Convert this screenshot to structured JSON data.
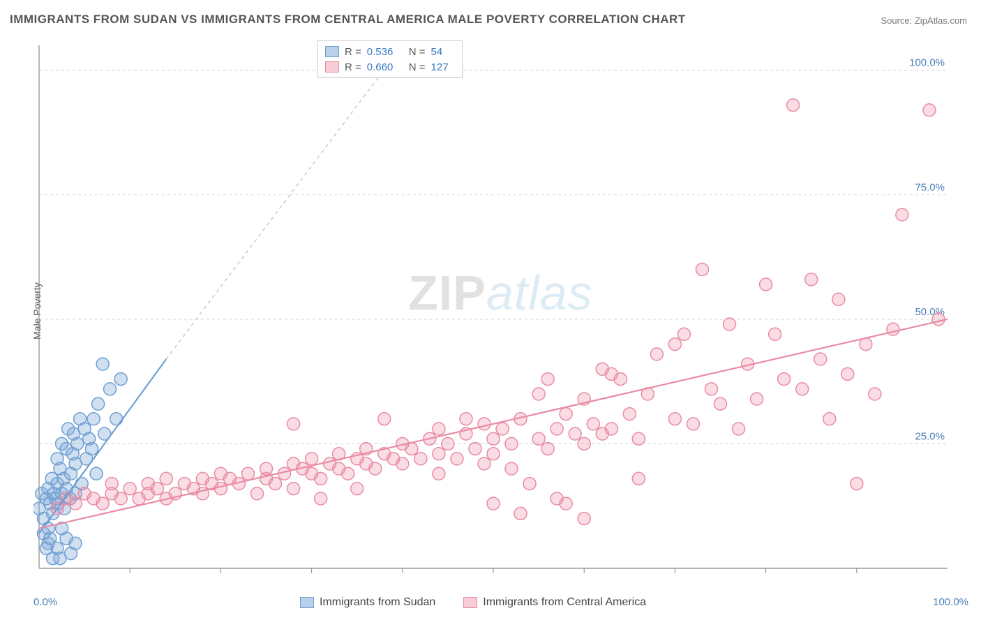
{
  "title": "IMMIGRANTS FROM SUDAN VS IMMIGRANTS FROM CENTRAL AMERICA MALE POVERTY CORRELATION CHART",
  "source": "Source: ZipAtlas.com",
  "y_axis_title": "Male Poverty",
  "watermark_a": "ZIP",
  "watermark_b": "atlas",
  "chart": {
    "type": "scatter-correlation",
    "xlim": [
      0,
      100
    ],
    "ylim": [
      0,
      105
    ],
    "x_ticks": [
      0,
      100
    ],
    "x_tick_labels": [
      "0.0%",
      "100.0%"
    ],
    "y_ticks": [
      25,
      50,
      75,
      100
    ],
    "y_tick_labels": [
      "25.0%",
      "50.0%",
      "75.0%",
      "100.0%"
    ],
    "minor_x_ticks": [
      10,
      20,
      30,
      40,
      50,
      60,
      70,
      80,
      90
    ],
    "background_color": "#ffffff",
    "grid_color": "#cfcfcf",
    "grid_dash": "4 4",
    "axis_color": "#888",
    "tick_label_color": "#4a7fb5",
    "marker_radius": 9,
    "marker_stroke_width": 1.5,
    "series": [
      {
        "name": "Immigrants from Sudan",
        "color_fill": "rgba(120,165,215,0.35)",
        "color_stroke": "#6f9fd1",
        "swatch_fill": "#b9d0ea",
        "swatch_stroke": "#6f9fd1",
        "R": "0.536",
        "N": "54",
        "trend": {
          "x1": 0,
          "y1": 7,
          "x2": 14,
          "y2": 42,
          "dash_extend_to": [
            40,
            105
          ]
        },
        "points": [
          [
            0,
            12
          ],
          [
            0.3,
            15
          ],
          [
            0.5,
            10
          ],
          [
            0.8,
            14
          ],
          [
            1,
            16
          ],
          [
            1,
            8
          ],
          [
            1.2,
            13
          ],
          [
            1.4,
            18
          ],
          [
            1.5,
            11
          ],
          [
            1.6,
            15
          ],
          [
            1.8,
            14
          ],
          [
            2,
            17
          ],
          [
            2,
            22
          ],
          [
            2.1,
            13
          ],
          [
            2.3,
            20
          ],
          [
            2.5,
            15
          ],
          [
            2.5,
            25
          ],
          [
            2.7,
            18
          ],
          [
            2.8,
            12
          ],
          [
            3,
            16
          ],
          [
            3,
            24
          ],
          [
            3.2,
            28
          ],
          [
            3.4,
            14
          ],
          [
            3.5,
            19
          ],
          [
            3.7,
            23
          ],
          [
            3.8,
            27
          ],
          [
            4,
            15
          ],
          [
            4,
            21
          ],
          [
            4.2,
            25
          ],
          [
            4.5,
            30
          ],
          [
            4.7,
            17
          ],
          [
            5,
            28
          ],
          [
            5.2,
            22
          ],
          [
            5.5,
            26
          ],
          [
            5.8,
            24
          ],
          [
            6,
            30
          ],
          [
            6.3,
            19
          ],
          [
            6.5,
            33
          ],
          [
            7,
            41
          ],
          [
            7.2,
            27
          ],
          [
            7.8,
            36
          ],
          [
            8.5,
            30
          ],
          [
            9,
            38
          ],
          [
            2,
            4
          ],
          [
            2.3,
            2
          ],
          [
            1,
            5
          ],
          [
            0.5,
            7
          ],
          [
            3,
            6
          ],
          [
            3.5,
            3
          ],
          [
            4,
            5
          ],
          [
            1.5,
            2
          ],
          [
            0.8,
            4
          ],
          [
            1.2,
            6
          ],
          [
            2.5,
            8
          ]
        ]
      },
      {
        "name": "Immigrants from Central America",
        "color_fill": "rgba(240,140,165,0.3)",
        "color_stroke": "#e98ba4",
        "swatch_fill": "#f7cdd8",
        "swatch_stroke": "#e98ba4",
        "R": "0.660",
        "N": "127",
        "trend": {
          "x1": 0,
          "y1": 8,
          "x2": 100,
          "y2": 50
        },
        "points": [
          [
            2,
            12
          ],
          [
            3,
            14
          ],
          [
            4,
            13
          ],
          [
            5,
            15
          ],
          [
            6,
            14
          ],
          [
            7,
            13
          ],
          [
            8,
            15
          ],
          [
            8,
            17
          ],
          [
            9,
            14
          ],
          [
            10,
            16
          ],
          [
            11,
            14
          ],
          [
            12,
            17
          ],
          [
            12,
            15
          ],
          [
            13,
            16
          ],
          [
            14,
            14
          ],
          [
            14,
            18
          ],
          [
            15,
            15
          ],
          [
            16,
            17
          ],
          [
            17,
            16
          ],
          [
            18,
            18
          ],
          [
            18,
            15
          ],
          [
            19,
            17
          ],
          [
            20,
            16
          ],
          [
            20,
            19
          ],
          [
            21,
            18
          ],
          [
            22,
            17
          ],
          [
            23,
            19
          ],
          [
            24,
            15
          ],
          [
            25,
            18
          ],
          [
            25,
            20
          ],
          [
            26,
            17
          ],
          [
            27,
            19
          ],
          [
            28,
            21
          ],
          [
            28,
            16
          ],
          [
            29,
            20
          ],
          [
            30,
            19
          ],
          [
            30,
            22
          ],
          [
            31,
            18
          ],
          [
            32,
            21
          ],
          [
            33,
            20
          ],
          [
            33,
            23
          ],
          [
            34,
            19
          ],
          [
            35,
            22
          ],
          [
            36,
            21
          ],
          [
            36,
            24
          ],
          [
            37,
            20
          ],
          [
            38,
            23
          ],
          [
            39,
            22
          ],
          [
            40,
            25
          ],
          [
            40,
            21
          ],
          [
            41,
            24
          ],
          [
            42,
            22
          ],
          [
            43,
            26
          ],
          [
            44,
            23
          ],
          [
            44,
            28
          ],
          [
            45,
            25
          ],
          [
            46,
            22
          ],
          [
            47,
            27
          ],
          [
            48,
            24
          ],
          [
            49,
            29
          ],
          [
            50,
            26
          ],
          [
            50,
            23
          ],
          [
            51,
            28
          ],
          [
            52,
            25
          ],
          [
            53,
            30
          ],
          [
            54,
            17
          ],
          [
            55,
            26
          ],
          [
            56,
            38
          ],
          [
            56,
            24
          ],
          [
            57,
            28
          ],
          [
            58,
            31
          ],
          [
            59,
            27
          ],
          [
            60,
            34
          ],
          [
            60,
            25
          ],
          [
            61,
            29
          ],
          [
            62,
            40
          ],
          [
            63,
            28
          ],
          [
            64,
            38
          ],
          [
            65,
            31
          ],
          [
            66,
            26
          ],
          [
            67,
            35
          ],
          [
            68,
            43
          ],
          [
            70,
            30
          ],
          [
            71,
            47
          ],
          [
            72,
            29
          ],
          [
            73,
            60
          ],
          [
            74,
            36
          ],
          [
            75,
            33
          ],
          [
            76,
            49
          ],
          [
            77,
            28
          ],
          [
            78,
            41
          ],
          [
            79,
            34
          ],
          [
            80,
            57
          ],
          [
            81,
            47
          ],
          [
            82,
            38
          ],
          [
            83,
            93
          ],
          [
            84,
            36
          ],
          [
            85,
            58
          ],
          [
            86,
            42
          ],
          [
            87,
            30
          ],
          [
            88,
            54
          ],
          [
            89,
            39
          ],
          [
            90,
            17
          ],
          [
            91,
            45
          ],
          [
            92,
            35
          ],
          [
            94,
            48
          ],
          [
            95,
            71
          ],
          [
            98,
            92
          ],
          [
            99,
            50
          ],
          [
            50,
            13
          ],
          [
            53,
            11
          ],
          [
            57,
            14
          ],
          [
            60,
            10
          ],
          [
            63,
            39
          ],
          [
            38,
            30
          ],
          [
            35,
            16
          ],
          [
            44,
            19
          ],
          [
            49,
            21
          ],
          [
            52,
            20
          ],
          [
            47,
            30
          ],
          [
            55,
            35
          ],
          [
            58,
            13
          ],
          [
            62,
            27
          ],
          [
            66,
            18
          ],
          [
            70,
            45
          ],
          [
            28,
            29
          ],
          [
            31,
            14
          ]
        ]
      }
    ],
    "legend_bottom_labels": [
      "Immigrants from Sudan",
      "Immigrants from Central America"
    ],
    "legend_top": {
      "R_label": "R  =",
      "N_label": "N  =",
      "value_color": "#3b78c4"
    }
  }
}
